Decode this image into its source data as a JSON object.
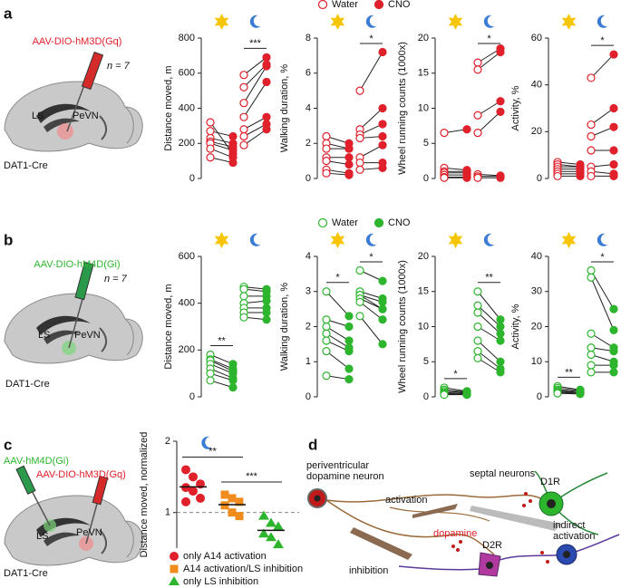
{
  "chart_data": [
    {
      "type": "paired",
      "ylabel": "Distance moved, m",
      "ylim": [
        0,
        800
      ],
      "yticks": [
        0,
        200,
        400,
        600,
        800
      ],
      "series": [
        {
          "color": "#e0202a",
          "filled": false,
          "values": [
            [
              320,
              270,
              230,
              210,
              200,
              170,
              120
            ],
            [
              590,
              520,
              430,
              350,
              280,
              240,
              190
            ]
          ]
        },
        {
          "color": "#e0202a",
          "filled": true,
          "values": [
            [
              140,
              240,
              200,
              180,
              160,
              120,
              90
            ],
            [
              690,
              650,
              640,
              550,
              350,
              310,
              280
            ]
          ]
        }
      ],
      "significance": [
        null,
        "***"
      ]
    },
    {
      "type": "paired",
      "ylabel": "Walking duration, %",
      "ylim": [
        0,
        8
      ],
      "yticks": [
        0,
        2,
        4,
        6,
        8
      ],
      "series": [
        {
          "name": "Water",
          "color": "#e0202a",
          "filled": false,
          "values": [
            [
              2.4,
              2.0,
              1.7,
              1.2,
              1.0,
              0.5,
              0.3
            ],
            [
              5.0,
              2.8,
              2.5,
              2.3,
              1.2,
              0.9,
              0.5
            ]
          ]
        },
        {
          "name": "CNO",
          "color": "#e0202a",
          "filled": true,
          "values": [
            [
              2.0,
              1.7,
              1.7,
              1.2,
              0.8,
              0.3,
              0.2
            ],
            [
              7.2,
              4.0,
              3.1,
              2.4,
              1.9,
              0.9,
              0.6
            ]
          ]
        }
      ],
      "significance": [
        null,
        "*"
      ]
    },
    {
      "type": "paired",
      "ylabel": "Wheel running counts (1000x)",
      "ylim": [
        0,
        20
      ],
      "yticks": [
        0,
        5,
        10,
        15,
        20
      ],
      "series": [
        {
          "color": "#e0202a",
          "filled": false,
          "values": [
            [
              6.5,
              1.5,
              1.0,
              0.8,
              0.5,
              0.2,
              0.1
            ],
            [
              16.5,
              15.5,
              9.0,
              6.5,
              0.6,
              0.3,
              0.1
            ]
          ]
        },
        {
          "color": "#e0202a",
          "filled": true,
          "values": [
            [
              7.0,
              1.2,
              1.0,
              0.8,
              0.5,
              0.2,
              0.1
            ],
            [
              18.5,
              18.0,
              11.0,
              9.5,
              0.4,
              0.3,
              0.1
            ]
          ]
        }
      ],
      "significance": [
        null,
        "*"
      ]
    },
    {
      "type": "paired",
      "ylabel": "Activity, %",
      "ylim": [
        0,
        60
      ],
      "yticks": [
        0,
        20,
        40,
        60
      ],
      "series": [
        {
          "color": "#e0202a",
          "filled": false,
          "values": [
            [
              7,
              6,
              5,
              4,
              3,
              2,
              1
            ],
            [
              43,
              23,
              18,
              12,
              5,
              3,
              1
            ]
          ]
        },
        {
          "color": "#e0202a",
          "filled": true,
          "values": [
            [
              6,
              5,
              5,
              4,
              3,
              2,
              1
            ],
            [
              53,
              30,
              22,
              12,
              6,
              2,
              1
            ]
          ]
        }
      ],
      "significance": [
        null,
        "*"
      ]
    },
    {
      "type": "paired",
      "ylabel": "Distance moved, m",
      "ylim": [
        0,
        600
      ],
      "yticks": [
        0,
        200,
        400,
        600
      ],
      "series": [
        {
          "color": "#2db52d",
          "filled": false,
          "values": [
            [
              180,
              160,
              155,
              140,
              120,
              100,
              70
            ],
            [
              470,
              460,
              430,
              400,
              380,
              360,
              340
            ]
          ]
        },
        {
          "color": "#2db52d",
          "filled": true,
          "values": [
            [
              140,
              120,
              110,
              100,
              80,
              70,
              40
            ],
            [
              460,
              450,
              430,
              410,
              380,
              360,
              330
            ]
          ]
        }
      ],
      "significance": [
        "**",
        null
      ]
    },
    {
      "type": "paired",
      "ylabel": "Walking duration, %",
      "ylim": [
        0,
        4
      ],
      "yticks": [
        0,
        1,
        2,
        3,
        4
      ],
      "series": [
        {
          "name": "Water",
          "color": "#2db52d",
          "filled": false,
          "values": [
            [
              3.0,
              2.2,
              2.0,
              1.8,
              1.6,
              1.3,
              0.6
            ],
            [
              3.6,
              3.0,
              2.9,
              2.9,
              2.8,
              2.7,
              2.3
            ]
          ]
        },
        {
          "name": "CNO",
          "color": "#2db52d",
          "filled": true,
          "values": [
            [
              2.3,
              2.0,
              1.6,
              1.4,
              1.3,
              0.8,
              0.5
            ],
            [
              3.3,
              2.8,
              2.7,
              2.5,
              2.5,
              2.2,
              1.5
            ]
          ]
        }
      ],
      "significance": [
        "*",
        "*"
      ]
    },
    {
      "type": "paired",
      "ylabel": "Wheel running counts (1000x)",
      "ylim": [
        0,
        20
      ],
      "yticks": [
        0,
        5,
        10,
        15,
        20
      ],
      "series": [
        {
          "color": "#2db52d",
          "filled": false,
          "values": [
            [
              1.3,
              1.0,
              0.8,
              0.6,
              0.5,
              0.4,
              0.3
            ],
            [
              15,
              13,
              12,
              10,
              8,
              6.5,
              5.5
            ]
          ]
        },
        {
          "color": "#2db52d",
          "filled": true,
          "values": [
            [
              0.8,
              0.7,
              0.6,
              0.5,
              0.4,
              0.3,
              0.3
            ],
            [
              11,
              10,
              9,
              8,
              5,
              4,
              3.5
            ]
          ]
        }
      ],
      "significance": [
        "*",
        "**"
      ]
    },
    {
      "type": "paired",
      "ylabel": "Activity, %",
      "ylim": [
        0,
        40
      ],
      "yticks": [
        0,
        10,
        20,
        30,
        40
      ],
      "series": [
        {
          "color": "#2db52d",
          "filled": false,
          "values": [
            [
              3,
              2.5,
              2,
              1.8,
              1.5,
              1.2,
              1
            ],
            [
              36,
              34,
              18,
              14,
              12,
              9,
              7
            ]
          ]
        },
        {
          "color": "#2db52d",
          "filled": true,
          "values": [
            [
              2,
              1.8,
              1.5,
              1.2,
              1,
              1,
              0.8
            ],
            [
              25,
              19,
              14,
              13,
              10,
              9,
              7
            ]
          ]
        }
      ],
      "significance": [
        "**",
        "*"
      ]
    },
    {
      "type": "strip",
      "ylabel": "Distance moved, normalized",
      "ylim": [
        0.5,
        2
      ],
      "yticks": [
        1,
        2
      ],
      "reference_line": 1,
      "series": [
        {
          "name": "only A14 activation",
          "color": "#e0202a",
          "marker": "circle",
          "values": [
            1.6,
            1.5,
            1.4,
            1.35,
            1.3,
            1.2,
            1.15
          ],
          "mean": 1.36
        },
        {
          "name": "A14 activation/LS inhibition",
          "color": "#f08c1e",
          "marker": "square",
          "values": [
            1.25,
            1.2,
            1.15,
            1.1,
            1.0,
            0.95
          ],
          "mean": 1.11
        },
        {
          "name": "only LS inhibition",
          "color": "#2db52d",
          "marker": "triangle",
          "values": [
            0.95,
            0.85,
            0.8,
            0.7,
            0.65,
            0.55
          ],
          "mean": 0.75
        }
      ],
      "comparisons": [
        {
          "groups": [
            0,
            1
          ],
          "label": "**"
        },
        {
          "groups": [
            1,
            2
          ],
          "label": "***"
        }
      ]
    }
  ],
  "figure": {
    "panel_labels": [
      "a",
      "b",
      "c",
      "d"
    ],
    "a": {
      "virus": "AAV-DIO-hM3D(Gq)",
      "n": "n = 7",
      "regions": [
        "LS",
        "PeVN"
      ],
      "mouse": "DAT1-Cre"
    },
    "b": {
      "virus": "AAV-DIO-hM4D(Gi)",
      "n": "n = 7",
      "regions": [
        "LS",
        "PeVN"
      ],
      "mouse": "DAT1-Cre"
    },
    "c": {
      "viruses": [
        "AAV-hM4D(Gi)",
        "AAV-DIO-hM3D(Gq)"
      ],
      "regions": [
        "LS",
        "PeVN"
      ],
      "mouse": "DAT1-Cre"
    },
    "d": {
      "source": [
        "periventricular",
        "dopamine neuron"
      ],
      "septal": "septal neurons",
      "activation": "activation",
      "d1r": "D1R",
      "indirect": [
        "indirect",
        "activation"
      ],
      "dopamine": "dopamine",
      "d2r": "D2R",
      "inhibition": "inhibition"
    }
  }
}
